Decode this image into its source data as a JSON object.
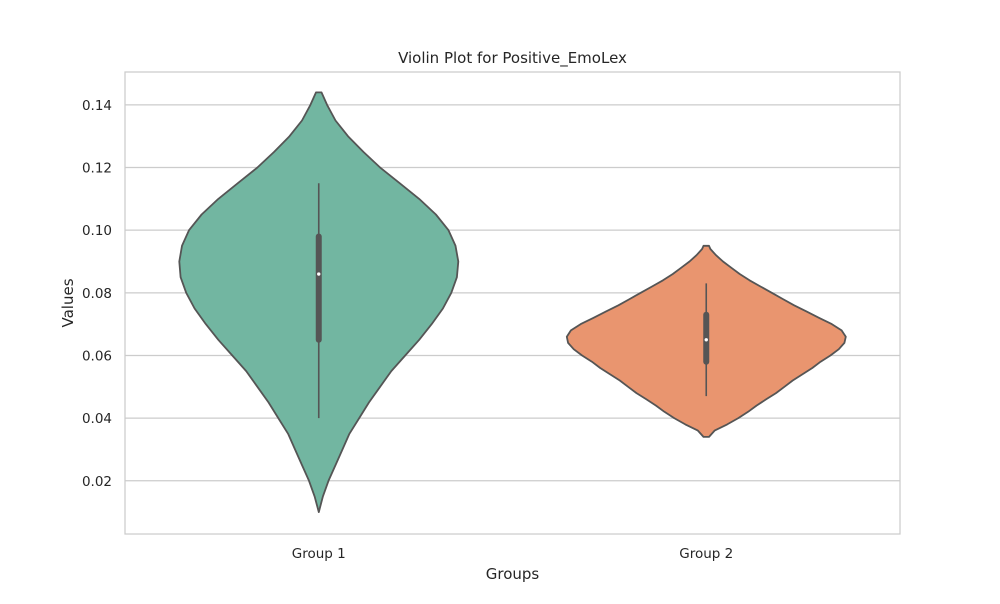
{
  "chart_data": {
    "type": "violin",
    "title": "Violin Plot for Positive_EmoLex",
    "xlabel": "Groups",
    "ylabel": "Values",
    "ylim": [
      0.003,
      0.1505
    ],
    "yticks": [
      "0.02",
      "0.04",
      "0.06",
      "0.08",
      "0.10",
      "0.12",
      "0.14"
    ],
    "grid": "horizontal",
    "groups": [
      {
        "name": "Group 1",
        "color": "#72b6a1",
        "y_min": 0.01,
        "y_max": 0.144,
        "median": 0.086,
        "q1": 0.065,
        "q3": 0.098,
        "whisker_low": 0.04,
        "whisker_high": 0.115,
        "density_profile": [
          [
            0.01,
            0.0
          ],
          [
            0.015,
            0.03
          ],
          [
            0.02,
            0.07
          ],
          [
            0.025,
            0.12
          ],
          [
            0.03,
            0.17
          ],
          [
            0.035,
            0.22
          ],
          [
            0.04,
            0.29
          ],
          [
            0.045,
            0.36
          ],
          [
            0.05,
            0.44
          ],
          [
            0.055,
            0.52
          ],
          [
            0.06,
            0.62
          ],
          [
            0.065,
            0.72
          ],
          [
            0.07,
            0.81
          ],
          [
            0.075,
            0.89
          ],
          [
            0.08,
            0.95
          ],
          [
            0.085,
            0.99
          ],
          [
            0.09,
            1.0
          ],
          [
            0.095,
            0.98
          ],
          [
            0.1,
            0.93
          ],
          [
            0.105,
            0.84
          ],
          [
            0.11,
            0.72
          ],
          [
            0.115,
            0.58
          ],
          [
            0.12,
            0.44
          ],
          [
            0.125,
            0.32
          ],
          [
            0.13,
            0.21
          ],
          [
            0.135,
            0.12
          ],
          [
            0.14,
            0.06
          ],
          [
            0.144,
            0.02
          ]
        ]
      },
      {
        "name": "Group 2",
        "color": "#e9956f",
        "y_min": 0.034,
        "y_max": 0.095,
        "median": 0.065,
        "q1": 0.058,
        "q3": 0.073,
        "whisker_low": 0.047,
        "whisker_high": 0.083,
        "density_profile": [
          [
            0.034,
            0.02
          ],
          [
            0.036,
            0.06
          ],
          [
            0.038,
            0.15
          ],
          [
            0.04,
            0.23
          ],
          [
            0.042,
            0.3
          ],
          [
            0.044,
            0.36
          ],
          [
            0.046,
            0.43
          ],
          [
            0.048,
            0.5
          ],
          [
            0.05,
            0.56
          ],
          [
            0.052,
            0.62
          ],
          [
            0.054,
            0.69
          ],
          [
            0.056,
            0.76
          ],
          [
            0.058,
            0.82
          ],
          [
            0.06,
            0.89
          ],
          [
            0.062,
            0.95
          ],
          [
            0.064,
            0.99
          ],
          [
            0.066,
            1.0
          ],
          [
            0.068,
            0.97
          ],
          [
            0.07,
            0.9
          ],
          [
            0.072,
            0.81
          ],
          [
            0.074,
            0.72
          ],
          [
            0.076,
            0.63
          ],
          [
            0.078,
            0.55
          ],
          [
            0.08,
            0.47
          ],
          [
            0.082,
            0.39
          ],
          [
            0.084,
            0.31
          ],
          [
            0.086,
            0.24
          ],
          [
            0.088,
            0.18
          ],
          [
            0.09,
            0.12
          ],
          [
            0.092,
            0.07
          ],
          [
            0.094,
            0.03
          ],
          [
            0.095,
            0.02
          ]
        ]
      }
    ]
  }
}
